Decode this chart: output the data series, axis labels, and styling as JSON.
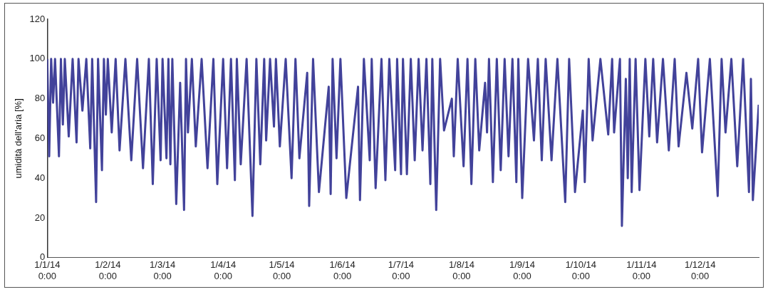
{
  "chart_data": {
    "type": "line",
    "ylabel": "umidità dell'aria [%]",
    "xlim": [
      "2014-01-01",
      "2014-12-31"
    ],
    "ylim": [
      0,
      120
    ],
    "yticks": [
      0,
      20,
      40,
      60,
      80,
      100,
      120
    ],
    "xticks": [
      {
        "value": "2014-01-01",
        "label": "1/1/14 0:00"
      },
      {
        "value": "2014-02-01",
        "label": "1/2/14 0:00"
      },
      {
        "value": "2014-03-01",
        "label": "1/3/14 0:00"
      },
      {
        "value": "2014-04-01",
        "label": "1/4/14 0:00"
      },
      {
        "value": "2014-05-01",
        "label": "1/5/14 0:00"
      },
      {
        "value": "2014-06-01",
        "label": "1/6/14 0:00"
      },
      {
        "value": "2014-07-01",
        "label": "1/7/14 0:00"
      },
      {
        "value": "2014-08-01",
        "label": "1/8/14 0:00"
      },
      {
        "value": "2014-09-01",
        "label": "1/9/14 0:00"
      },
      {
        "value": "2014-10-01",
        "label": "1/10/14 0:00"
      },
      {
        "value": "2014-11-01",
        "label": "1/11/14 0:00"
      },
      {
        "value": "2014-12-01",
        "label": "1/12/14 0:00"
      }
    ],
    "grid": false,
    "legend": false,
    "marker": "none",
    "line_style": "solid",
    "series": [
      {
        "color": "#42429a",
        "x": [
          "2014-01-01",
          "2014-01-02",
          "2014-01-03",
          "2014-01-04",
          "2014-01-05",
          "2014-01-07",
          "2014-01-08",
          "2014-01-09",
          "2014-01-10",
          "2014-01-12",
          "2014-01-14",
          "2014-01-16",
          "2014-01-17",
          "2014-01-19",
          "2014-01-21",
          "2014-01-23",
          "2014-01-24",
          "2014-01-26",
          "2014-01-27",
          "2014-01-29",
          "2014-01-30",
          "2014-01-31",
          "2014-02-01",
          "2014-02-03",
          "2014-02-05",
          "2014-02-07",
          "2014-02-10",
          "2014-02-13",
          "2014-02-16",
          "2014-02-19",
          "2014-02-22",
          "2014-02-24",
          "2014-02-26",
          "2014-02-28",
          "2014-03-01",
          "2014-03-03",
          "2014-03-04",
          "2014-03-05",
          "2014-03-06",
          "2014-03-08",
          "2014-03-10",
          "2014-03-12",
          "2014-03-13",
          "2014-03-14",
          "2014-03-16",
          "2014-03-18",
          "2014-03-21",
          "2014-03-24",
          "2014-03-27",
          "2014-03-29",
          "2014-04-01",
          "2014-04-03",
          "2014-04-05",
          "2014-04-07",
          "2014-04-08",
          "2014-04-10",
          "2014-04-13",
          "2014-04-16",
          "2014-04-18",
          "2014-04-20",
          "2014-04-22",
          "2014-04-23",
          "2014-04-25",
          "2014-04-27",
          "2014-04-28",
          "2014-04-30",
          "2014-05-03",
          "2014-05-06",
          "2014-05-08",
          "2014-05-10",
          "2014-05-14",
          "2014-05-15",
          "2014-05-17",
          "2014-05-20",
          "2014-05-25",
          "2014-05-26",
          "2014-05-27",
          "2014-05-29",
          "2014-05-31",
          "2014-06-03",
          "2014-06-09",
          "2014-06-10",
          "2014-06-12",
          "2014-06-15",
          "2014-06-16",
          "2014-06-18",
          "2014-06-21",
          "2014-06-23",
          "2014-06-25",
          "2014-06-28",
          "2014-06-29",
          "2014-07-01",
          "2014-07-02",
          "2014-07-04",
          "2014-07-06",
          "2014-07-08",
          "2014-07-10",
          "2014-07-12",
          "2014-07-14",
          "2014-07-16",
          "2014-07-17",
          "2014-07-19",
          "2014-07-21",
          "2014-07-23",
          "2014-07-27",
          "2014-07-28",
          "2014-07-30",
          "2014-08-02",
          "2014-08-04",
          "2014-08-06",
          "2014-08-08",
          "2014-08-10",
          "2014-08-13",
          "2014-08-14",
          "2014-08-15",
          "2014-08-17",
          "2014-08-19",
          "2014-08-21",
          "2014-08-23",
          "2014-08-25",
          "2014-08-27",
          "2014-08-29",
          "2014-08-30",
          "2014-09-01",
          "2014-09-04",
          "2014-09-07",
          "2014-09-09",
          "2014-09-11",
          "2014-09-13",
          "2014-09-16",
          "2014-09-19",
          "2014-09-23",
          "2014-09-25",
          "2014-09-28",
          "2014-10-02",
          "2014-10-03",
          "2014-10-05",
          "2014-10-07",
          "2014-10-11",
          "2014-10-15",
          "2014-10-17",
          "2014-10-18",
          "2014-10-21",
          "2014-10-22",
          "2014-10-24",
          "2014-10-25",
          "2014-10-26",
          "2014-10-27",
          "2014-10-29",
          "2014-10-31",
          "2014-11-03",
          "2014-11-05",
          "2014-11-07",
          "2014-11-09",
          "2014-11-12",
          "2014-11-15",
          "2014-11-18",
          "2014-11-20",
          "2014-11-24",
          "2014-11-27",
          "2014-11-30",
          "2014-12-02",
          "2014-12-06",
          "2014-12-10",
          "2014-12-12",
          "2014-12-14",
          "2014-12-17",
          "2014-12-20",
          "2014-12-23",
          "2014-12-26",
          "2014-12-27",
          "2014-12-28",
          "2014-12-31"
        ],
        "values": [
          100,
          51,
          100,
          78,
          100,
          51,
          100,
          67,
          100,
          61,
          100,
          58,
          100,
          74,
          100,
          55,
          100,
          28,
          100,
          44,
          100,
          72,
          100,
          63,
          100,
          54,
          100,
          49,
          100,
          45,
          100,
          37,
          100,
          49,
          100,
          50,
          100,
          47,
          100,
          27,
          88,
          24,
          100,
          63,
          100,
          56,
          100,
          45,
          100,
          37,
          100,
          45,
          100,
          39,
          100,
          47,
          100,
          21,
          100,
          47,
          100,
          59,
          100,
          66,
          100,
          56,
          100,
          40,
          100,
          50,
          93,
          26,
          100,
          33,
          86,
          32,
          100,
          50,
          100,
          30,
          86,
          29,
          100,
          49,
          100,
          35,
          100,
          39,
          100,
          44,
          100,
          42,
          100,
          42,
          100,
          49,
          100,
          54,
          100,
          37,
          100,
          24,
          100,
          64,
          80,
          51,
          100,
          46,
          100,
          37,
          100,
          54,
          88,
          63,
          100,
          38,
          100,
          44,
          100,
          51,
          100,
          38,
          100,
          30,
          100,
          59,
          100,
          49,
          100,
          49,
          100,
          28,
          100,
          33,
          74,
          38,
          100,
          59,
          100,
          62,
          100,
          63,
          100,
          16,
          90,
          40,
          100,
          33,
          100,
          34,
          100,
          61,
          100,
          58,
          100,
          54,
          100,
          56,
          93,
          65,
          100,
          53,
          100,
          31,
          100,
          63,
          100,
          46,
          100,
          33,
          90,
          29,
          77
        ]
      }
    ]
  }
}
